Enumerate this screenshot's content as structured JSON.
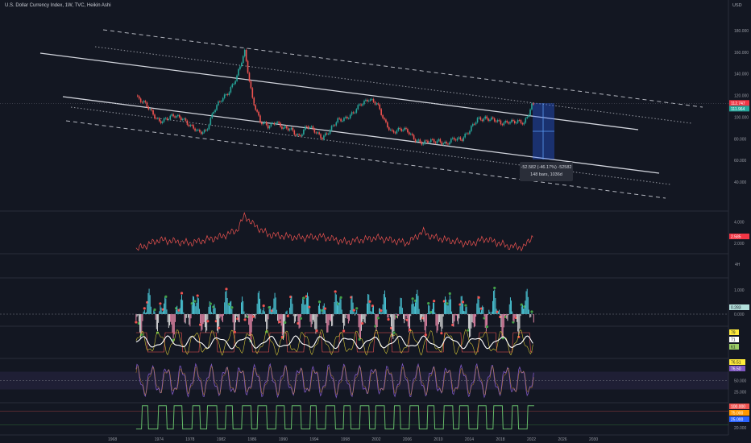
{
  "header": {
    "title": "U.S. Dollar Currency Index, 1W, TVC, Heikin Ashi",
    "currency": "USD"
  },
  "measure_tooltip": {
    "line1": "-52.582 (-46.17%) -52582",
    "line2": "148 bars, 1036d"
  },
  "colors": {
    "background": "#131722",
    "bull": "#26a69a",
    "bear": "#ef5350",
    "price_label": "#f23645",
    "cyan": "#4dd0e1",
    "yellow": "#ffeb3b",
    "purple": "#7e57c2",
    "accent_blue": "#2962ff"
  },
  "chart_data": [
    {
      "type": "line",
      "name": "price",
      "style": "heikin-ashi candles",
      "x_tick_labels": [
        "1968",
        "1974",
        "1978",
        "1982",
        "1986",
        "1990",
        "1994",
        "1998",
        "2002",
        "2006",
        "2010",
        "2014",
        "2018",
        "2022",
        "2026",
        "2030"
      ],
      "y_ticks": [
        180,
        160,
        140,
        120,
        100,
        80,
        60,
        40
      ],
      "y_tick_labels": [
        "180.000",
        "160.000",
        "140.000",
        "120.000",
        "100.000",
        "80.000",
        "60.000",
        "40.000"
      ],
      "ylim": [
        30,
        190
      ],
      "y_range_note": "y axis 2 with 40 to 180",
      "price_labels": [
        "112.747",
        "111.964"
      ],
      "x": [
        1971,
        1972,
        1973,
        1974,
        1975,
        1976,
        1977,
        1978,
        1979,
        1980,
        1981,
        1982,
        1983,
        1984,
        1985,
        1986,
        1987,
        1988,
        1989,
        1990,
        1991,
        1992,
        1993,
        1994,
        1995,
        1996,
        1997,
        1998,
        1999,
        2000,
        2001,
        2002,
        2003,
        2004,
        2005,
        2006,
        2007,
        2008,
        2009,
        2010,
        2011,
        2012,
        2013,
        2014,
        2015,
        2016,
        2017,
        2018,
        2019,
        2020,
        2021,
        2022
      ],
      "values": [
        120,
        113,
        104,
        97,
        98,
        101,
        100,
        91,
        86,
        88,
        105,
        116,
        125,
        137,
        160,
        118,
        95,
        91,
        97,
        89,
        88,
        83,
        91,
        87,
        82,
        87,
        97,
        100,
        103,
        112,
        118,
        112,
        96,
        87,
        88,
        87,
        80,
        75,
        78,
        79,
        74,
        80,
        81,
        87,
        98,
        100,
        97,
        94,
        97,
        95,
        94,
        112
      ],
      "trendlines": "descending parallel channel: solid upper/lower lines, dotted and dashed outer bands"
    },
    {
      "type": "line",
      "name": "ATR panel",
      "y_tick_labels": [
        "4.000",
        "2.000"
      ],
      "ylim": [
        1,
        5
      ],
      "price_label": "2.585",
      "x": [
        1971,
        1974,
        1978,
        1982,
        1984,
        1985,
        1986,
        1988,
        1992,
        1995,
        1998,
        2002,
        2006,
        2008,
        2009,
        2011,
        2014,
        2016,
        2019,
        2021,
        2022
      ],
      "values": [
        1.4,
        2.3,
        2.0,
        2.6,
        3.2,
        4.6,
        3.8,
        2.8,
        2.5,
        2.6,
        2.1,
        2.5,
        2.0,
        3.1,
        2.6,
        2.3,
        1.9,
        2.4,
        1.7,
        1.6,
        2.6
      ]
    },
    {
      "type": "bar",
      "name": "momentum histogram",
      "y_tick_labels": [
        "1.000",
        "0.000"
      ],
      "ylim": [
        -0.6,
        1.3
      ],
      "price_label": "0.283",
      "note": "oscillating cyan (positive) and red/white (negative) bars with red/green dot markers"
    },
    {
      "type": "line",
      "name": "stochastic panel",
      "price_labels": [
        "79",
        "71",
        "61"
      ],
      "ylim": [
        0,
        100
      ]
    },
    {
      "type": "line",
      "name": "RSI panel",
      "y_tick_labels": [
        "50.000",
        "25.000"
      ],
      "price_labels": [
        "76.51",
        "76.50"
      ],
      "ylim": [
        0,
        100
      ],
      "band": [
        30,
        70
      ]
    },
    {
      "type": "line",
      "name": "trend state panel",
      "y_tick_labels": [
        "20.000"
      ],
      "price_labels": [
        "100.000",
        "75.000",
        "25.000"
      ],
      "ylim": [
        0,
        100
      ]
    }
  ],
  "side_label": "4H"
}
